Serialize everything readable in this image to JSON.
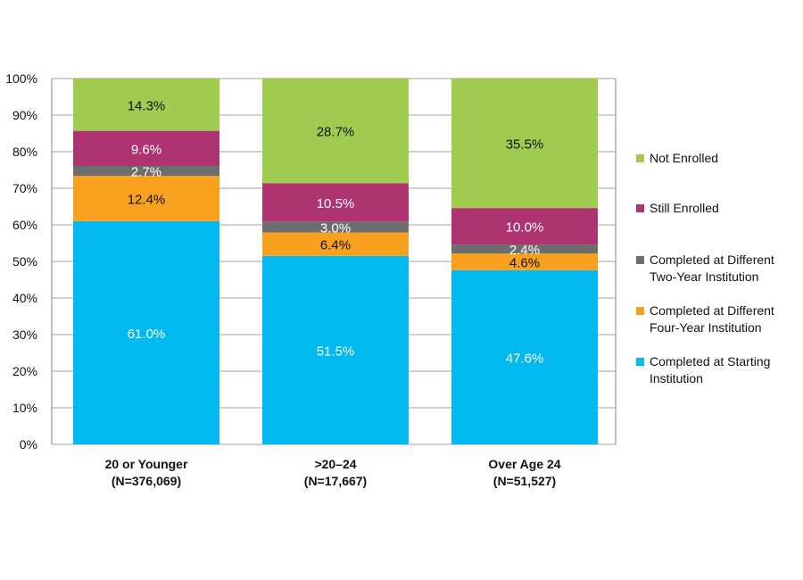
{
  "chart_data": {
    "type": "bar",
    "stacked": true,
    "title": "",
    "xlabel": "",
    "ylabel": "",
    "ylim": [
      0,
      100
    ],
    "yticks": [
      "0%",
      "10%",
      "20%",
      "30%",
      "40%",
      "50%",
      "60%",
      "70%",
      "80%",
      "90%",
      "100%"
    ],
    "grid": true,
    "legend_position": "right",
    "categories": [
      [
        "20 or Younger",
        "(N=376,069)"
      ],
      [
        ">20–24",
        "(N=17,667)"
      ],
      [
        "Over Age 24",
        "(N=51,527)"
      ]
    ],
    "series": [
      {
        "name": "Completed at Starting Institution",
        "legend_lines": [
          "Completed at Starting",
          "Institution"
        ],
        "color": "#00B9F0",
        "label_color": "#FFFFFF",
        "values": [
          61.0,
          51.5,
          47.6
        ],
        "labels": [
          "61.0%",
          "51.5%",
          "47.6%"
        ]
      },
      {
        "name": "Completed at Different Four-Year Institution",
        "legend_lines": [
          "Completed at Different",
          "Four-Year Institution"
        ],
        "color": "#F9A11E",
        "label_color": "#111111",
        "values": [
          12.4,
          6.4,
          4.6
        ],
        "labels": [
          "12.4%",
          "6.4%",
          "4.6%"
        ]
      },
      {
        "name": "Completed at Different Two-Year Institution",
        "legend_lines": [
          "Completed at Different",
          "Two-Year Institution"
        ],
        "color": "#6D6D6D",
        "label_color": "#FFFFFF",
        "values": [
          2.7,
          3.0,
          2.4
        ],
        "labels": [
          "2.7%",
          "3.0%",
          "2.4%"
        ]
      },
      {
        "name": "Still Enrolled",
        "legend_lines": [
          "Still Enrolled"
        ],
        "color": "#AE3471",
        "label_color": "#FFFFFF",
        "values": [
          9.6,
          10.5,
          10.0
        ],
        "labels": [
          "9.6%",
          "10.5%",
          "10.0%"
        ]
      },
      {
        "name": "Not Enrolled",
        "legend_lines": [
          "Not Enrolled"
        ],
        "color": "#9FCB4F",
        "label_color": "#111111",
        "values": [
          14.3,
          28.7,
          35.5
        ],
        "labels": [
          "14.3%",
          "28.7%",
          "35.5%"
        ]
      }
    ]
  }
}
